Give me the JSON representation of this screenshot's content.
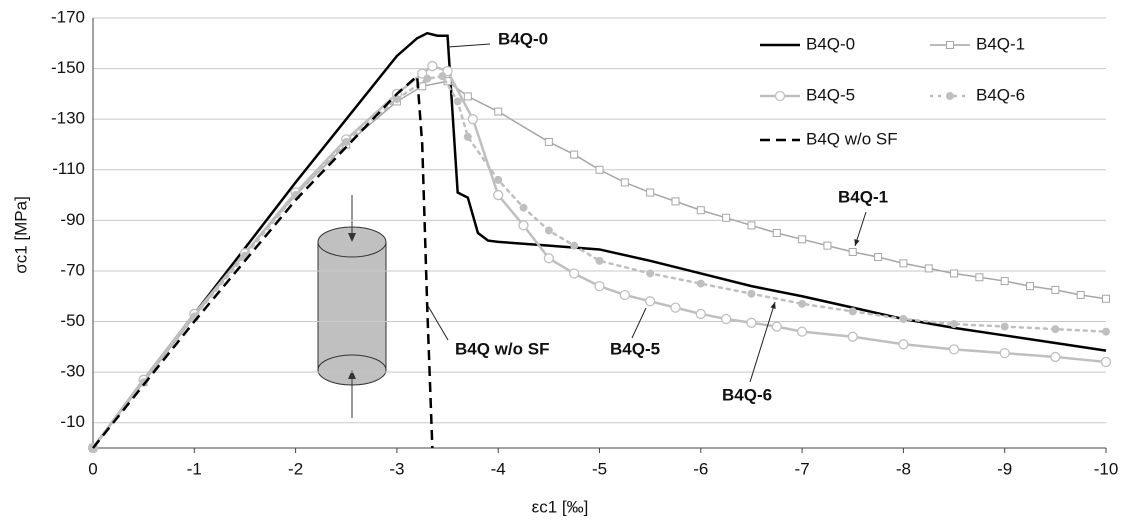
{
  "chart_data": {
    "type": "line",
    "x_label": "εc1 [‰]",
    "y_label": "σc1 [MPa]",
    "xlim": [
      0,
      -10
    ],
    "ylim": [
      0,
      -170
    ],
    "xticks": [
      0,
      -1,
      -2,
      -3,
      -4,
      -5,
      -6,
      -7,
      -8,
      -9,
      -10
    ],
    "yticks": [
      -10,
      -30,
      -50,
      -70,
      -90,
      -110,
      -130,
      -150,
      -170
    ],
    "grid": true,
    "series": [
      {
        "name": "B4Q-0",
        "color": "#000000",
        "marker": "none",
        "dash": "solid",
        "width": 2.5,
        "x": [
          0,
          -0.5,
          -1,
          -1.5,
          -2,
          -2.5,
          -2.8,
          -3,
          -3.2,
          -3.3,
          -3.4,
          -3.5,
          -3.6,
          -3.7,
          -3.8,
          -3.9,
          -4,
          -4.5,
          -5,
          -5.5,
          -6,
          -6.5,
          -7,
          -7.5,
          -8,
          -8.5,
          -9,
          -9.5,
          -10
        ],
        "values": [
          0,
          -27,
          -53,
          -79,
          -105,
          -130,
          -145,
          -155,
          -162,
          -164,
          -163,
          -163,
          -101,
          -99,
          -85,
          -82,
          -81.5,
          -80,
          -78.5,
          -74,
          -69,
          -64,
          -60,
          -55.5,
          -51,
          -47.5,
          -44.5,
          -41.5,
          -38.5
        ]
      },
      {
        "name": "B4Q-1",
        "color": "#a6a6a6",
        "marker": "square",
        "dash": "solid",
        "width": 1.5,
        "x": [
          0,
          -0.5,
          -1,
          -1.5,
          -2,
          -2.5,
          -3,
          -3.25,
          -3.5,
          -3.7,
          -4,
          -4.5,
          -4.75,
          -5,
          -5.25,
          -5.5,
          -5.75,
          -6,
          -6.25,
          -6.5,
          -6.75,
          -7,
          -7.25,
          -7.5,
          -7.75,
          -8,
          -8.25,
          -8.5,
          -8.75,
          -9,
          -9.25,
          -9.5,
          -9.75,
          -10
        ],
        "values": [
          0,
          -26,
          -52,
          -77,
          -100,
          -120,
          -137,
          -143,
          -145,
          -139,
          -133,
          -121,
          -116,
          -110,
          -105,
          -101,
          -97.5,
          -94,
          -91,
          -88,
          -85,
          -82.5,
          -80,
          -77.5,
          -75.5,
          -73,
          -71,
          -69,
          -67.5,
          -66,
          -64,
          -62.5,
          -60.5,
          -59
        ]
      },
      {
        "name": "B4Q-5",
        "color": "#bfbfbf",
        "marker": "circle",
        "dash": "solid",
        "width": 2.5,
        "x": [
          0,
          -0.5,
          -1,
          -1.5,
          -2,
          -2.5,
          -3,
          -3.25,
          -3.35,
          -3.5,
          -3.75,
          -4,
          -4.25,
          -4.5,
          -4.75,
          -5,
          -5.25,
          -5.5,
          -5.75,
          -6,
          -6.25,
          -6.5,
          -6.75,
          -7,
          -7.5,
          -8,
          -8.5,
          -9,
          -9.5,
          -10
        ],
        "values": [
          0,
          -27,
          -53,
          -77,
          -101,
          -122,
          -140,
          -148,
          -151,
          -149,
          -130,
          -100,
          -88,
          -75,
          -69,
          -64,
          -60.5,
          -58,
          -55.5,
          -53,
          -51,
          -49.5,
          -48,
          -46,
          -44,
          -41,
          -39,
          -37.5,
          -36,
          -34
        ]
      },
      {
        "name": "B4Q-6",
        "color": "#bfbfbf",
        "marker": "dot",
        "dash": "dotted",
        "width": 2.5,
        "x": [
          0,
          -0.5,
          -1,
          -1.5,
          -2,
          -2.5,
          -3,
          -3.3,
          -3.45,
          -3.6,
          -3.7,
          -4,
          -4.25,
          -4.5,
          -4.75,
          -5,
          -5.5,
          -6,
          -6.5,
          -7,
          -7.5,
          -8,
          -8.5,
          -9,
          -9.5,
          -10
        ],
        "values": [
          0,
          -26,
          -52,
          -76,
          -100,
          -121,
          -138,
          -146,
          -147,
          -137,
          -123,
          -106,
          -95,
          -86,
          -80,
          -74,
          -69,
          -65,
          -61,
          -57,
          -54,
          -51,
          -49,
          -48,
          -47,
          -46
        ]
      },
      {
        "name": "B4Q w/o SF",
        "color": "#000000",
        "marker": "none",
        "dash": "dashed",
        "width": 2.5,
        "x": [
          0,
          -1,
          -2,
          -3,
          -3.2,
          -3.25,
          -3.3,
          -3.35
        ],
        "values": [
          0,
          -50,
          -98,
          -140,
          -147,
          -120,
          -55,
          0
        ]
      }
    ],
    "annotations": [
      "B4Q-0",
      "B4Q-1",
      "B4Q-5",
      "B4Q-6",
      "B4Q w/o SF"
    ]
  }
}
